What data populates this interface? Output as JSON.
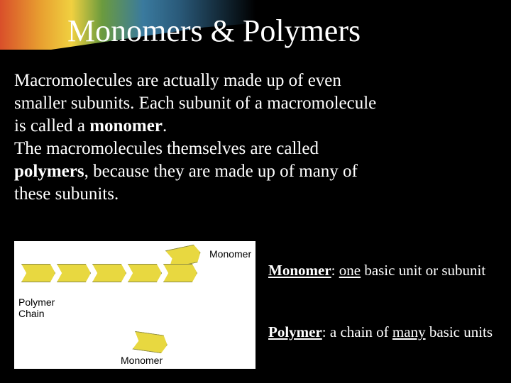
{
  "title": "Monomers & Polymers",
  "body": {
    "line1": "Macromolecules are actually made up of even",
    "line2": "smaller subunits.  Each subunit of a macromolecule",
    "line3a": "is called a ",
    "term1": "monomer",
    "line3b": ".",
    "line4": "The macromolecules themselves are called",
    "term2": "polymers",
    "line5a": ", because they are made up of many of",
    "line6": "these subunits."
  },
  "diagram": {
    "label_monomer": "Monomer",
    "label_polymer_l1": "Polymer",
    "label_polymer_l2": "Chain",
    "label_monomer2": "Monomer",
    "monomer_color": "#e8d840",
    "monomer_count": 5,
    "background": "#ffffff"
  },
  "definitions": {
    "monomer_label": "Monomer",
    "monomer_mid": ": ",
    "monomer_one": "one",
    "monomer_rest": " basic unit or subunit",
    "polymer_label": "Polymer",
    "polymer_mid": ": a chain of ",
    "polymer_many": "many",
    "polymer_rest": " basic units"
  },
  "colors": {
    "background": "#000000",
    "text": "#ffffff",
    "gradient": [
      "#d94f2a",
      "#e8a030",
      "#f0d040",
      "#6b9b3e",
      "#3a7a9e",
      "#2a5a7a",
      "#000000"
    ]
  },
  "typography": {
    "title_fontsize": 44,
    "body_fontsize": 25,
    "def_fontsize": 21,
    "diagram_label_fontsize": 14,
    "font_family": "Georgia, serif"
  }
}
